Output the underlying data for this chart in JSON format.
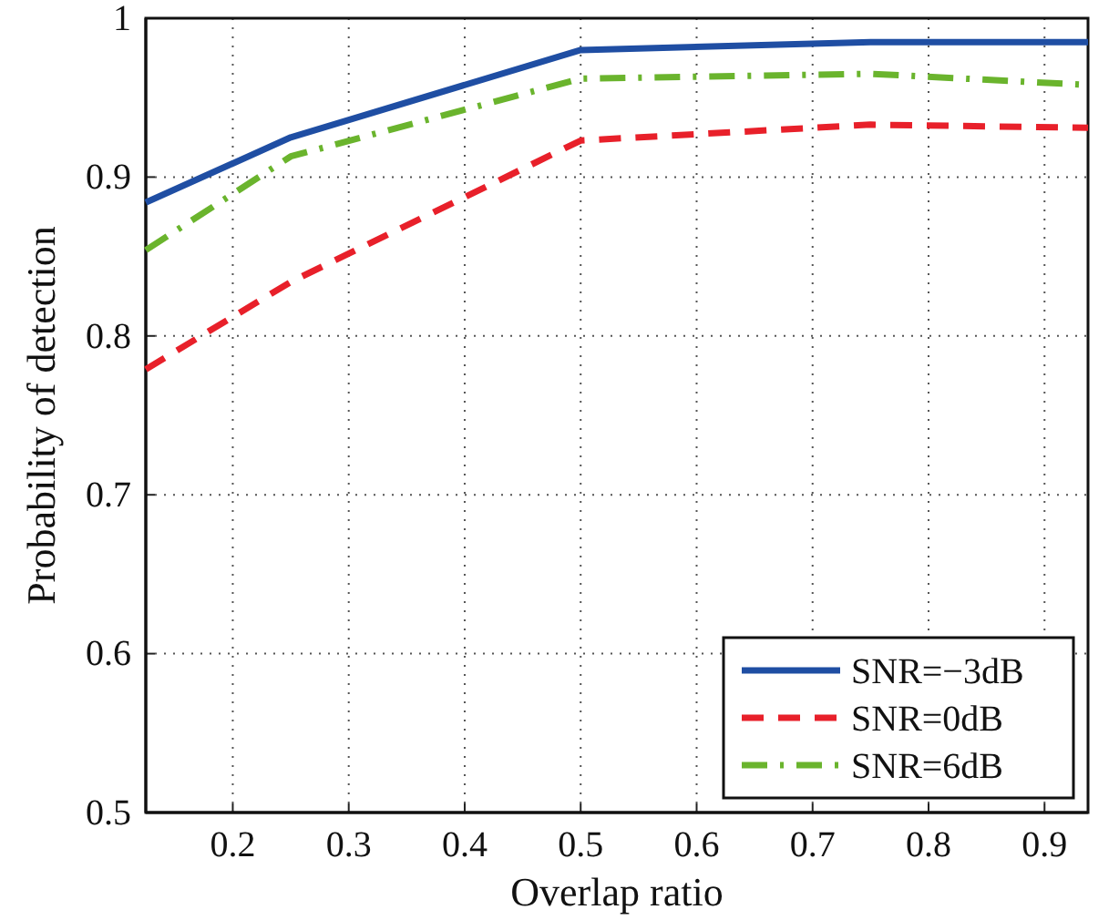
{
  "chart_data": {
    "type": "line",
    "xlabel": "Overlap ratio",
    "ylabel": "Probability of detection",
    "x": [
      0.125,
      0.25,
      0.5,
      0.75,
      0.9375
    ],
    "series": [
      {
        "name": "SNR=−3dB",
        "color": "#1f4ea3",
        "line_style": "solid",
        "values": [
          0.884,
          0.925,
          0.98,
          0.985,
          0.985
        ]
      },
      {
        "name": "SNR=0dB",
        "color": "#e8202a",
        "line_style": "dashed",
        "values": [
          0.779,
          0.834,
          0.923,
          0.933,
          0.931
        ]
      },
      {
        "name": "SNR=6dB",
        "color": "#6ab42d",
        "line_style": "dashdot",
        "values": [
          0.854,
          0.913,
          0.962,
          0.965,
          0.958
        ]
      }
    ],
    "xlim": [
      0.125,
      0.9375
    ],
    "xticks": [
      0.2,
      0.3,
      0.4,
      0.5,
      0.6,
      0.7,
      0.8,
      0.9
    ],
    "ylim": [
      0.5,
      1
    ],
    "yticks": [
      0.5,
      0.6,
      0.7,
      0.8,
      0.9,
      1
    ],
    "grid": true,
    "legend": "bottom right",
    "marker": "none"
  }
}
